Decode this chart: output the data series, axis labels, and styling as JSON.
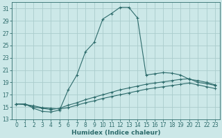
{
  "title": "",
  "xlabel": "Humidex (Indice chaleur)",
  "ylabel": "",
  "background_color": "#cce8e8",
  "grid_color": "#aacccc",
  "line_color": "#2d6b6b",
  "xlim": [
    -0.5,
    23.5
  ],
  "ylim": [
    13,
    32
  ],
  "xticks": [
    0,
    1,
    2,
    3,
    4,
    5,
    6,
    7,
    8,
    9,
    10,
    11,
    12,
    13,
    14,
    15,
    16,
    17,
    18,
    19,
    20,
    21,
    22,
    23
  ],
  "yticks": [
    13,
    15,
    17,
    19,
    21,
    23,
    25,
    27,
    29,
    31
  ],
  "curve1_x": [
    0,
    1,
    2,
    3,
    4,
    5,
    6,
    7,
    8,
    9,
    10,
    11,
    12,
    13,
    14,
    15,
    16,
    17,
    18,
    19,
    20,
    21,
    22,
    23
  ],
  "curve1_y": [
    15.5,
    15.5,
    14.8,
    14.3,
    14.2,
    14.5,
    17.8,
    20.2,
    24.0,
    25.5,
    29.3,
    30.2,
    31.2,
    31.2,
    29.5,
    20.2,
    20.4,
    20.6,
    20.5,
    20.2,
    19.5,
    19.3,
    19.0,
    18.6
  ],
  "curve2_x": [
    0,
    1,
    2,
    3,
    4,
    5,
    6,
    7,
    8,
    9,
    10,
    11,
    12,
    13,
    14,
    15,
    16,
    17,
    18,
    19,
    20,
    21,
    22,
    23
  ],
  "curve2_y": [
    15.5,
    15.5,
    15.0,
    14.8,
    14.6,
    14.8,
    15.3,
    15.7,
    16.2,
    16.6,
    17.0,
    17.4,
    17.8,
    18.1,
    18.4,
    18.7,
    18.9,
    19.1,
    19.3,
    19.5,
    19.6,
    19.0,
    18.8,
    18.5
  ],
  "curve3_x": [
    0,
    1,
    2,
    3,
    4,
    5,
    6,
    7,
    8,
    9,
    10,
    11,
    12,
    13,
    14,
    15,
    16,
    17,
    18,
    19,
    20,
    21,
    22,
    23
  ],
  "curve3_y": [
    15.5,
    15.4,
    15.2,
    14.9,
    14.8,
    14.7,
    14.9,
    15.3,
    15.7,
    16.0,
    16.4,
    16.7,
    17.0,
    17.3,
    17.6,
    17.9,
    18.1,
    18.3,
    18.5,
    18.7,
    18.9,
    18.6,
    18.3,
    18.0
  ],
  "tick_fontsize": 5.5,
  "xlabel_fontsize": 6.5,
  "xlabel_fontweight": "bold"
}
